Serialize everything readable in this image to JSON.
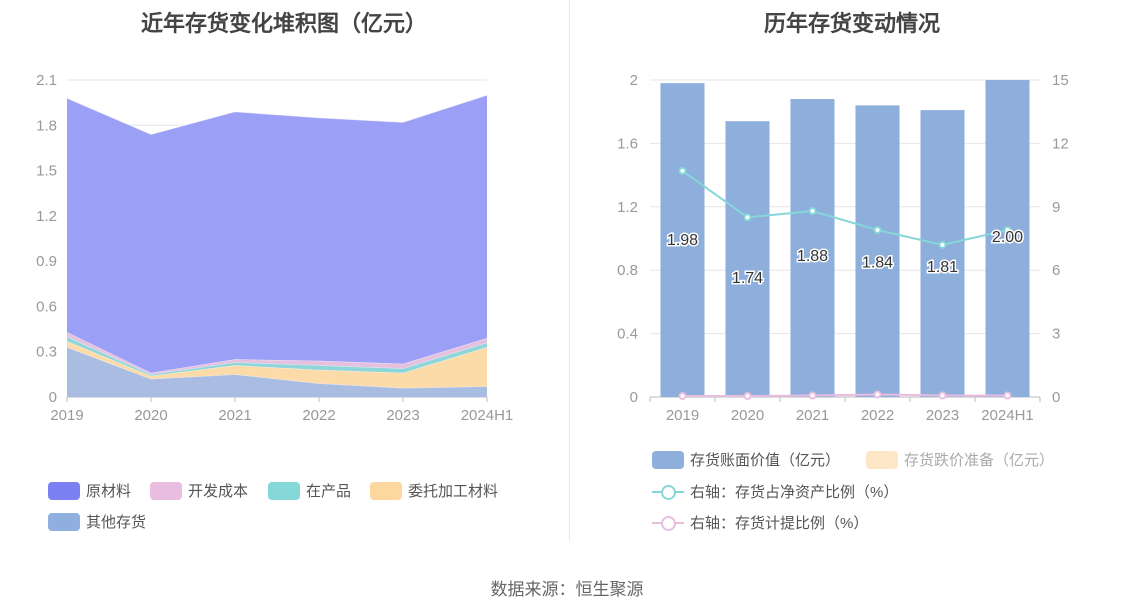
{
  "left_title": "近年存货变化堆积图（亿元）",
  "right_title": "历年存货变动情况",
  "source": "数据来源：恒生聚源",
  "chart_data": [
    {
      "type": "area",
      "stacked": true,
      "title": "近年存货变化堆积图（亿元）",
      "x": [
        "2019",
        "2020",
        "2021",
        "2022",
        "2023",
        "2024H1"
      ],
      "ylim": [
        0,
        2.1
      ],
      "yticks": [
        "0",
        "0.3",
        "0.6",
        "0.9",
        "1.2",
        "1.5",
        "1.8",
        "2.1"
      ],
      "grid": true,
      "legend_position": "bottom",
      "series": [
        {
          "name": "其他存货",
          "color": "#a9bde3",
          "values": [
            0.33,
            0.12,
            0.15,
            0.09,
            0.06,
            0.07
          ]
        },
        {
          "name": "委托加工材料",
          "color": "#fddba8",
          "values": [
            0.04,
            0.02,
            0.06,
            0.09,
            0.1,
            0.26
          ]
        },
        {
          "name": "在产品",
          "color": "#8ed6d9",
          "values": [
            0.03,
            0.01,
            0.02,
            0.03,
            0.03,
            0.03
          ]
        },
        {
          "name": "开发成本",
          "color": "#e5c0df",
          "values": [
            0.03,
            0.01,
            0.02,
            0.03,
            0.03,
            0.03
          ]
        },
        {
          "name": "原材料",
          "color": "#9b9ff6",
          "values": [
            1.55,
            1.58,
            1.64,
            1.61,
            1.6,
            1.61
          ]
        }
      ],
      "legend_items": [
        {
          "name": "原材料",
          "color": "#7b80f2"
        },
        {
          "name": "开发成本",
          "color": "#e8bde0"
        },
        {
          "name": "在产品",
          "color": "#86d7d8"
        },
        {
          "name": "委托加工材料",
          "color": "#fdd89e"
        },
        {
          "name": "其他存货",
          "color": "#8fafde"
        }
      ]
    },
    {
      "type": "bar",
      "title": "历年存货变动情况",
      "categories": [
        "2019",
        "2020",
        "2021",
        "2022",
        "2023",
        "2024H1"
      ],
      "ylim": [
        0,
        2
      ],
      "yticks": [
        "0",
        "0.4",
        "0.8",
        "1.2",
        "1.6",
        "2"
      ],
      "y2lim": [
        0,
        15
      ],
      "y2ticks": [
        "0",
        "3",
        "6",
        "9",
        "12",
        "15"
      ],
      "grid": true,
      "legend_position": "bottom",
      "series": [
        {
          "name": "存货账面价值（亿元）",
          "type": "bar",
          "axis": "left",
          "color": "#8eaedb",
          "values": [
            1.98,
            1.74,
            1.88,
            1.84,
            1.81,
            2.0
          ],
          "labels": [
            "1.98",
            "1.74",
            "1.88",
            "1.84",
            "1.81",
            "2.00"
          ]
        },
        {
          "name": "存货跌价准备（亿元）",
          "type": "bar",
          "axis": "left",
          "color": "#fde6c6",
          "values": [
            0,
            0,
            0,
            0,
            0,
            0
          ]
        },
        {
          "name": "右轴：存货占净资产比例（%）",
          "type": "line",
          "axis": "right",
          "color": "#86d7d8",
          "values": [
            10.7,
            8.5,
            8.8,
            7.9,
            7.2,
            7.9
          ]
        },
        {
          "name": "右轴：存货计提比例（%）",
          "type": "line",
          "axis": "right",
          "color": "#e8bde0",
          "values": [
            0.05,
            0.05,
            0.07,
            0.12,
            0.07,
            0.07
          ]
        }
      ]
    }
  ]
}
